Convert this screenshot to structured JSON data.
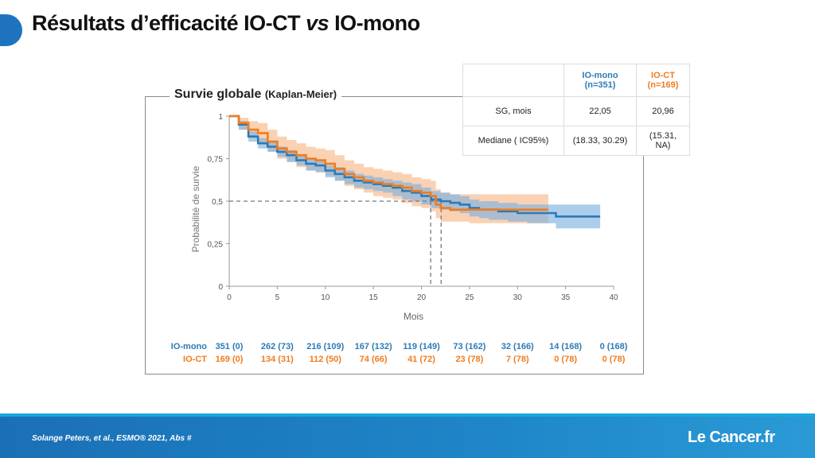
{
  "slide": {
    "title_prefix": "Résultats d’efficacité IO-CT ",
    "title_vs": "vs",
    "title_suffix": " IO-mono",
    "panel_title": "Survie globale",
    "panel_subtitle": "(Kaplan-Meier)",
    "citation": "Solange Peters, et al.,  ESMO® 2021, Abs #",
    "logo": "Le Cancer.fr",
    "accent_color": "#1e73be"
  },
  "stats_table": {
    "headers": [
      "",
      "IO-mono\n(n=351)",
      "IO-CT\n(n=169)"
    ],
    "header_mono_1": "IO-mono",
    "header_mono_2": "(n=351)",
    "header_ct_1": "IO-CT",
    "header_ct_2": "(n=169)",
    "rows": [
      {
        "label": "SG, mois",
        "mono": "22,05",
        "ct": "20,96"
      },
      {
        "label": "Mediane ( IC95%)",
        "mono": "(18.33, 30.29)",
        "ct": "(15.31, NA)"
      }
    ]
  },
  "chart_data": {
    "type": "line",
    "title": "Survie globale",
    "subtitle": "(Kaplan-Meier)",
    "xlabel": "Mois",
    "ylabel": "Probabilité de survie",
    "xlim": [
      0,
      40
    ],
    "ylim": [
      0,
      1
    ],
    "x_ticks": [
      0,
      5,
      10,
      15,
      20,
      25,
      30,
      35,
      40
    ],
    "y_ticks": [
      0,
      0.25,
      0.5,
      0.75,
      1
    ],
    "y_tick_labels": [
      "0",
      "0,25",
      "0,5",
      "0,75",
      "1"
    ],
    "reference_line_y": 0.5,
    "median_markers_x": [
      20.96,
      22.05
    ],
    "series": [
      {
        "name": "IO-mono",
        "color": "#2c7bb6",
        "band_color": "#7fb2e0",
        "x": [
          0,
          1,
          2,
          3,
          4,
          5,
          6,
          7,
          8,
          9,
          10,
          11,
          12,
          13,
          14,
          15,
          16,
          17,
          18,
          19,
          20,
          21,
          22,
          23,
          24,
          25,
          26,
          27,
          28,
          29,
          30,
          31,
          32,
          33,
          34,
          35,
          36,
          37,
          38.6
        ],
        "y": [
          1,
          0.95,
          0.88,
          0.84,
          0.82,
          0.79,
          0.77,
          0.74,
          0.72,
          0.71,
          0.68,
          0.66,
          0.64,
          0.62,
          0.61,
          0.6,
          0.59,
          0.58,
          0.56,
          0.55,
          0.53,
          0.51,
          0.5,
          0.49,
          0.48,
          0.46,
          0.45,
          0.45,
          0.44,
          0.44,
          0.43,
          0.43,
          0.43,
          0.43,
          0.41,
          0.41,
          0.41,
          0.41,
          0.41
        ],
        "lower": [
          1,
          0.92,
          0.85,
          0.81,
          0.79,
          0.76,
          0.73,
          0.71,
          0.68,
          0.67,
          0.64,
          0.62,
          0.6,
          0.58,
          0.57,
          0.56,
          0.55,
          0.53,
          0.51,
          0.5,
          0.48,
          0.46,
          0.45,
          0.44,
          0.43,
          0.41,
          0.4,
          0.39,
          0.39,
          0.38,
          0.38,
          0.37,
          0.37,
          0.37,
          0.34,
          0.34,
          0.34,
          0.34,
          0.34
        ],
        "upper": [
          1,
          0.97,
          0.91,
          0.87,
          0.85,
          0.82,
          0.8,
          0.77,
          0.75,
          0.74,
          0.71,
          0.7,
          0.68,
          0.66,
          0.65,
          0.64,
          0.63,
          0.62,
          0.61,
          0.6,
          0.58,
          0.56,
          0.55,
          0.54,
          0.53,
          0.51,
          0.5,
          0.5,
          0.49,
          0.49,
          0.48,
          0.48,
          0.48,
          0.48,
          0.48,
          0.48,
          0.48,
          0.48,
          0.48
        ]
      },
      {
        "name": "IO-CT",
        "color": "#f07c1f",
        "band_color": "#f7b98a",
        "x": [
          0,
          1,
          2,
          3,
          4,
          5,
          6,
          7,
          8,
          9,
          10,
          11,
          12,
          13,
          14,
          15,
          16,
          17,
          18,
          19,
          20,
          20.96,
          21.5,
          22,
          23,
          24,
          25,
          26,
          27,
          28,
          29,
          30,
          31,
          32,
          33.2
        ],
        "y": [
          1,
          0.96,
          0.92,
          0.9,
          0.85,
          0.81,
          0.79,
          0.77,
          0.75,
          0.74,
          0.72,
          0.69,
          0.66,
          0.64,
          0.62,
          0.61,
          0.6,
          0.59,
          0.58,
          0.56,
          0.55,
          0.53,
          0.48,
          0.46,
          0.45,
          0.45,
          0.45,
          0.45,
          0.45,
          0.45,
          0.45,
          0.45,
          0.45,
          0.45,
          0.45
        ],
        "lower": [
          1,
          0.92,
          0.87,
          0.84,
          0.79,
          0.75,
          0.73,
          0.7,
          0.68,
          0.67,
          0.65,
          0.62,
          0.59,
          0.57,
          0.55,
          0.53,
          0.52,
          0.51,
          0.49,
          0.47,
          0.46,
          0.44,
          0.4,
          0.38,
          0.38,
          0.38,
          0.37,
          0.37,
          0.37,
          0.37,
          0.37,
          0.37,
          0.37,
          0.37,
          0.37
        ],
        "upper": [
          1,
          0.99,
          0.97,
          0.96,
          0.92,
          0.88,
          0.86,
          0.84,
          0.82,
          0.81,
          0.8,
          0.77,
          0.74,
          0.72,
          0.7,
          0.69,
          0.68,
          0.67,
          0.66,
          0.64,
          0.63,
          0.62,
          0.57,
          0.55,
          0.54,
          0.54,
          0.54,
          0.54,
          0.54,
          0.54,
          0.54,
          0.54,
          0.54,
          0.54,
          0.54
        ]
      }
    ],
    "at_risk": {
      "times": [
        0,
        5,
        10,
        15,
        20,
        25,
        30,
        35,
        40
      ],
      "rows": [
        {
          "name": "IO-mono",
          "values": [
            "351 (0)",
            "262 (73)",
            "216 (109)",
            "167 (132)",
            "119 (149)",
            "73 (162)",
            "32 (166)",
            "14 (168)",
            "0 (168)"
          ]
        },
        {
          "name": "IO-CT",
          "values": [
            "169 (0)",
            "134 (31)",
            "112 (50)",
            "74 (66)",
            "41 (72)",
            "23 (78)",
            "7 (78)",
            "0 (78)",
            "0 (78)"
          ]
        }
      ]
    }
  }
}
